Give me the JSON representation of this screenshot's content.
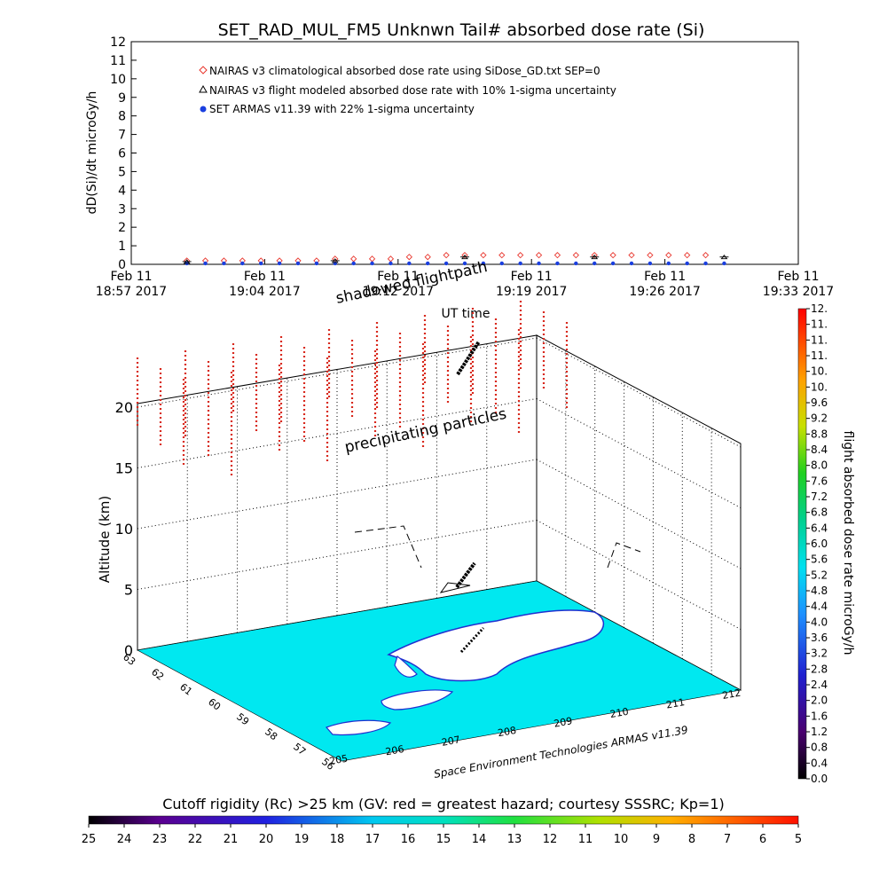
{
  "title": "SET_RAD_MUL_FM5 Unknwn Tail#  absorbed dose rate (Si)",
  "top_chart": {
    "ylabel": "dD(Si)/dt microGy/h",
    "yticks": [
      "0",
      "1",
      "2",
      "3",
      "4",
      "5",
      "6",
      "7",
      "8",
      "9",
      "10",
      "11",
      "12"
    ],
    "xticks": [
      {
        "line1": "Feb 11",
        "line2": "18:57 2017"
      },
      {
        "line1": "Feb 11",
        "line2": "19:04 2017"
      },
      {
        "line1": "Feb 11",
        "line2": "19:12 2017"
      },
      {
        "line1": "Feb 11",
        "line2": "19:19 2017"
      },
      {
        "line1": "Feb 11",
        "line2": "19:26 2017"
      },
      {
        "line1": "Feb 11",
        "line2": "19:33 2017"
      }
    ],
    "xlabel": "UT time",
    "legend": [
      {
        "symbol": "diamond",
        "color": "#e8352c",
        "label": "NAIRAS v3 climatological absorbed dose rate using SiDose_GD.txt SEP=0"
      },
      {
        "symbol": "triangle",
        "color": "#000000",
        "label": "NAIRAS v3 flight modeled absorbed dose rate with 10% 1-sigma uncertainty"
      },
      {
        "symbol": "dot",
        "color": "#1a3fe0",
        "label": "SET ARMAS v11.39 with 22% 1-sigma uncertainty"
      }
    ]
  },
  "scene": {
    "shadow_label": "shadowed flightpath",
    "precip_label": "precipitating particles",
    "credit": "Space Environment Technologies ARMAS v11.39",
    "altitude_label": "Altitude (km)",
    "altitude_ticks": [
      "0",
      "5",
      "10",
      "15",
      "20"
    ],
    "lat_ticks": [
      "63",
      "62",
      "61",
      "60",
      "59",
      "58",
      "57",
      "56"
    ],
    "lon_ticks": [
      "205",
      "206",
      "207",
      "208",
      "209",
      "210",
      "211",
      "212"
    ]
  },
  "dose_colorbar": {
    "title": "flight absorbed dose rate microGy/h",
    "ticks": [
      "0.0",
      "0.4",
      "0.8",
      "1.2",
      "1.6",
      "2.0",
      "2.4",
      "2.8",
      "3.2",
      "3.6",
      "4.0",
      "4.4",
      "4.8",
      "5.2",
      "5.6",
      "6.0",
      "6.4",
      "6.8",
      "7.2",
      "7.6",
      "8.0",
      "8.4",
      "8.8",
      "9.2",
      "9.6",
      "10.",
      "10.",
      "11.",
      "11.",
      "11.",
      "12."
    ]
  },
  "rigidity_colorbar": {
    "title": "Cutoff rigidity (Rc) >25 km (GV: red = greatest hazard; courtesy SSSRC; Kp=1)",
    "ticks": [
      "25",
      "24",
      "23",
      "22",
      "21",
      "20",
      "19",
      "18",
      "17",
      "16",
      "15",
      "14",
      "13",
      "12",
      "11",
      "10",
      "9",
      "8",
      "7",
      "6",
      "5"
    ]
  },
  "chart_data": {
    "type": "scatter",
    "title": "SET_RAD_MUL_FM5 Unknwn Tail#  absorbed dose rate (Si)",
    "xlabel": "UT time",
    "ylabel": "dD(Si)/dt microGy/h",
    "ylim": [
      0,
      12
    ],
    "xlim": [
      "18:57",
      "19:33"
    ],
    "series": [
      {
        "name": "NAIRAS v3 climatological absorbed dose rate using SiDose_GD.txt SEP=0",
        "x": [
          "19:00",
          "19:01",
          "19:02",
          "19:03",
          "19:04",
          "19:05",
          "19:06",
          "19:07",
          "19:08",
          "19:09",
          "19:10",
          "19:11",
          "19:12",
          "19:13",
          "19:14",
          "19:15",
          "19:16",
          "19:17",
          "19:18",
          "19:19",
          "19:20",
          "19:21",
          "19:22",
          "19:23",
          "19:24",
          "19:25",
          "19:26",
          "19:27",
          "19:28"
        ],
        "values": [
          0.1,
          0.1,
          0.1,
          0.1,
          0.1,
          0.1,
          0.1,
          0.1,
          0.2,
          0.2,
          0.2,
          0.2,
          0.3,
          0.3,
          0.4,
          0.4,
          0.4,
          0.4,
          0.4,
          0.4,
          0.4,
          0.4,
          0.4,
          0.4,
          0.4,
          0.4,
          0.4,
          0.4,
          0.4
        ]
      },
      {
        "name": "NAIRAS v3 flight modeled absorbed dose rate with 10% 1-sigma uncertainty",
        "x": [
          "19:00",
          "19:08",
          "19:15",
          "19:22",
          "19:29"
        ],
        "values": [
          0.05,
          0.1,
          0.3,
          0.3,
          0.3
        ]
      },
      {
        "name": "SET ARMAS v11.39 with 22% 1-sigma uncertainty",
        "x": [
          "19:00",
          "19:01",
          "19:02",
          "19:03",
          "19:04",
          "19:05",
          "19:06",
          "19:07",
          "19:08",
          "19:09",
          "19:10",
          "19:11",
          "19:12",
          "19:13",
          "19:14",
          "19:15",
          "19:16",
          "19:17",
          "19:18",
          "19:19",
          "19:20",
          "19:21",
          "19:22",
          "19:23",
          "19:24",
          "19:25",
          "19:26",
          "19:27",
          "19:28",
          "19:29"
        ],
        "values": [
          0.05,
          0.05,
          0.05,
          0.05,
          0.05,
          0.05,
          0.05,
          0.05,
          0.05,
          0.05,
          0.05,
          0.05,
          0.05,
          0.05,
          0.05,
          0.05,
          0.05,
          0.05,
          0.05,
          0.05,
          0.05,
          0.05,
          0.05,
          0.05,
          0.05,
          0.05,
          0.05,
          0.05,
          0.05,
          0.05
        ]
      }
    ]
  }
}
